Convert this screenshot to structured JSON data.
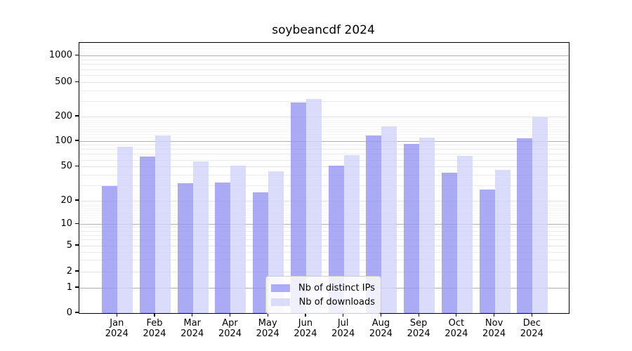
{
  "title": "soybeancdf 2024",
  "chart_data": {
    "type": "bar",
    "title": "soybeancdf 2024",
    "categories": [
      "Jan",
      "Feb",
      "Mar",
      "Apr",
      "May",
      "Jun",
      "Jul",
      "Aug",
      "Sep",
      "Oct",
      "Nov",
      "Dec"
    ],
    "year_label": "2024",
    "series": [
      {
        "name": "Nb of distinct IPs",
        "color": "#acacf8",
        "fill": "rgba(150,150,242,0.8)",
        "values": [
          30,
          66,
          32,
          33,
          25,
          295,
          52,
          118,
          92,
          43,
          27,
          109
        ]
      },
      {
        "name": "Nb of downloads",
        "color": "#dbdbfa",
        "fill": "rgba(210,210,250,0.8)",
        "values": [
          86,
          118,
          58,
          52,
          44,
          320,
          68,
          152,
          110,
          67,
          46,
          196
        ]
      }
    ],
    "xlabel": "",
    "ylabel": "",
    "yscale": "symlog",
    "yticks": [
      0,
      1,
      2,
      5,
      10,
      20,
      50,
      100,
      200,
      500,
      1000
    ],
    "ylim": [
      0,
      1400
    ],
    "grid": true,
    "legend_position": "lower center"
  },
  "colors": {
    "grid_major": "#b0b0b0",
    "grid_minor": "#ebebeb",
    "axis": "#000000",
    "background": "#ffffff"
  }
}
